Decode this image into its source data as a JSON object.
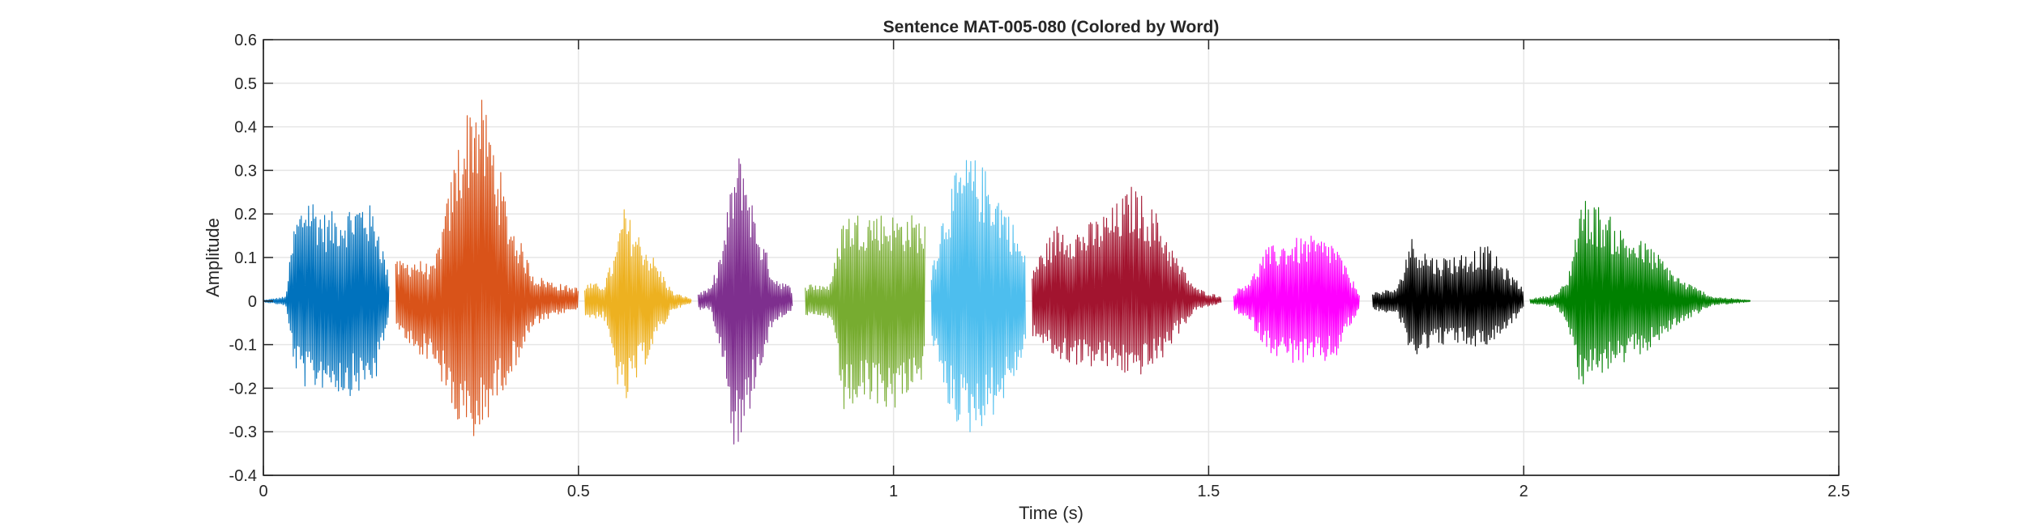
{
  "chart_data": {
    "type": "line",
    "title": "Sentence MAT-005-080 (Colored by Word)",
    "xlabel": "Time (s)",
    "ylabel": "Amplitude",
    "xlim": [
      0,
      2.5
    ],
    "ylim": [
      -0.4,
      0.6
    ],
    "xticks": [
      0,
      0.5,
      1,
      1.5,
      2,
      2.5
    ],
    "xtick_labels": [
      "0",
      "0.5",
      "1",
      "1.5",
      "2",
      "2.5"
    ],
    "yticks": [
      -0.4,
      -0.3,
      -0.2,
      -0.1,
      0,
      0.1,
      0.2,
      0.3,
      0.4,
      0.5,
      0.6
    ],
    "ytick_labels": [
      "-0.4",
      "-0.3",
      "-0.2",
      "-0.1",
      "0",
      "0.1",
      "0.2",
      "0.3",
      "0.4",
      "0.5",
      "0.6"
    ],
    "grid": true,
    "segments": [
      {
        "color": "#0072BD",
        "t_start": 0.0,
        "t_end": 0.2,
        "envelope_t": [
          0.0,
          0.035,
          0.05,
          0.07,
          0.1,
          0.13,
          0.16,
          0.18,
          0.2
        ],
        "envelope_max": [
          0.002,
          0.01,
          0.19,
          0.26,
          0.2,
          0.22,
          0.24,
          0.2,
          0.05
        ],
        "envelope_min": [
          -0.002,
          -0.01,
          -0.16,
          -0.21,
          -0.2,
          -0.22,
          -0.21,
          -0.18,
          -0.04
        ]
      },
      {
        "color": "#D95319",
        "t_start": 0.21,
        "t_end": 0.5,
        "envelope_t": [
          0.21,
          0.24,
          0.27,
          0.29,
          0.31,
          0.335,
          0.36,
          0.39,
          0.43,
          0.47,
          0.5
        ],
        "envelope_max": [
          0.09,
          0.1,
          0.08,
          0.22,
          0.38,
          0.5,
          0.42,
          0.2,
          0.06,
          0.04,
          0.03
        ],
        "envelope_min": [
          -0.07,
          -0.12,
          -0.14,
          -0.22,
          -0.3,
          -0.34,
          -0.26,
          -0.18,
          -0.06,
          -0.03,
          -0.02
        ]
      },
      {
        "color": "#EDB120",
        "t_start": 0.51,
        "t_end": 0.68,
        "envelope_t": [
          0.51,
          0.54,
          0.56,
          0.57,
          0.59,
          0.62,
          0.65,
          0.68
        ],
        "envelope_max": [
          0.04,
          0.04,
          0.12,
          0.22,
          0.17,
          0.1,
          0.02,
          0.005
        ],
        "envelope_min": [
          -0.04,
          -0.04,
          -0.18,
          -0.26,
          -0.2,
          -0.1,
          -0.02,
          -0.005
        ]
      },
      {
        "color": "#7E2F8E",
        "t_start": 0.69,
        "t_end": 0.84,
        "envelope_t": [
          0.69,
          0.71,
          0.73,
          0.745,
          0.76,
          0.78,
          0.81,
          0.84
        ],
        "envelope_max": [
          0.02,
          0.03,
          0.14,
          0.3,
          0.36,
          0.2,
          0.06,
          0.03
        ],
        "envelope_min": [
          -0.02,
          -0.02,
          -0.14,
          -0.33,
          -0.34,
          -0.2,
          -0.05,
          -0.02
        ]
      },
      {
        "color": "#77AC30",
        "t_start": 0.86,
        "t_end": 1.05,
        "envelope_t": [
          0.86,
          0.9,
          0.92,
          0.96,
          1.0,
          1.03,
          1.05
        ],
        "envelope_max": [
          0.04,
          0.04,
          0.2,
          0.21,
          0.2,
          0.2,
          0.19
        ],
        "envelope_min": [
          -0.04,
          -0.04,
          -0.26,
          -0.24,
          -0.25,
          -0.2,
          -0.18
        ]
      },
      {
        "color": "#4DBEEE",
        "t_start": 1.06,
        "t_end": 1.21,
        "envelope_t": [
          1.06,
          1.08,
          1.1,
          1.12,
          1.15,
          1.18,
          1.21
        ],
        "envelope_max": [
          0.08,
          0.22,
          0.3,
          0.34,
          0.3,
          0.22,
          0.1
        ],
        "envelope_min": [
          -0.08,
          -0.23,
          -0.28,
          -0.31,
          -0.28,
          -0.22,
          -0.12
        ]
      },
      {
        "color": "#A2142F",
        "t_start": 1.22,
        "t_end": 1.52,
        "envelope_t": [
          1.22,
          1.26,
          1.3,
          1.35,
          1.38,
          1.42,
          1.45,
          1.48,
          1.52
        ],
        "envelope_max": [
          0.08,
          0.18,
          0.17,
          0.22,
          0.27,
          0.2,
          0.1,
          0.03,
          0.01
        ],
        "envelope_min": [
          -0.08,
          -0.14,
          -0.15,
          -0.16,
          -0.18,
          -0.15,
          -0.08,
          -0.02,
          -0.005
        ]
      },
      {
        "color": "#FF00FF",
        "t_start": 1.54,
        "t_end": 1.74,
        "envelope_t": [
          1.54,
          1.57,
          1.59,
          1.62,
          1.66,
          1.7,
          1.72,
          1.74
        ],
        "envelope_max": [
          0.02,
          0.06,
          0.12,
          0.14,
          0.15,
          0.14,
          0.07,
          0.02
        ],
        "envelope_min": [
          -0.02,
          -0.06,
          -0.11,
          -0.14,
          -0.15,
          -0.14,
          -0.07,
          -0.02
        ]
      },
      {
        "color": "#000000",
        "t_start": 1.76,
        "t_end": 2.0,
        "envelope_t": [
          1.76,
          1.8,
          1.82,
          1.86,
          1.9,
          1.94,
          1.97,
          2.0
        ],
        "envelope_max": [
          0.02,
          0.03,
          0.15,
          0.1,
          0.11,
          0.13,
          0.08,
          0.03
        ],
        "envelope_min": [
          -0.02,
          -0.03,
          -0.13,
          -0.1,
          -0.1,
          -0.11,
          -0.07,
          -0.02
        ]
      },
      {
        "color": "#008000",
        "t_start": 2.01,
        "t_end": 2.36,
        "envelope_t": [
          2.01,
          2.05,
          2.07,
          2.09,
          2.12,
          2.16,
          2.2,
          2.25,
          2.3,
          2.36
        ],
        "envelope_max": [
          0.005,
          0.015,
          0.05,
          0.24,
          0.22,
          0.16,
          0.13,
          0.05,
          0.01,
          0.002
        ],
        "envelope_min": [
          -0.005,
          -0.015,
          -0.05,
          -0.2,
          -0.17,
          -0.15,
          -0.11,
          -0.05,
          -0.01,
          -0.002
        ]
      }
    ]
  }
}
